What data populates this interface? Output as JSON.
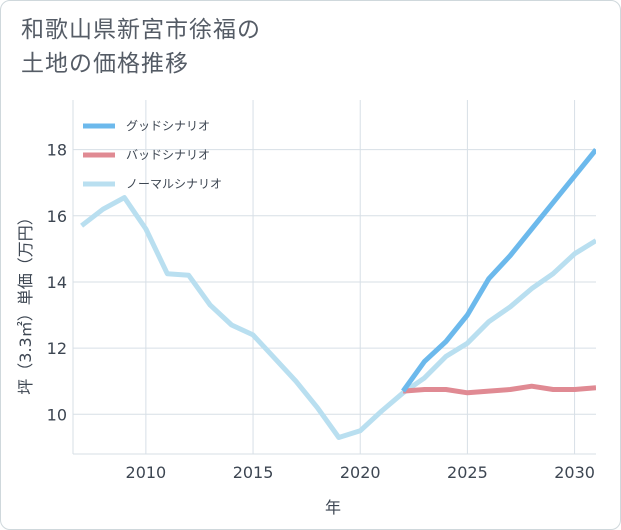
{
  "header": {
    "title_line1": "和歌山県新宮市徐福の",
    "title_line2": "土地の価格推移"
  },
  "chart_data": {
    "type": "line",
    "title": "和歌山県新宮市徐福の土地の価格推移",
    "xlabel": "年",
    "ylabel": "坪（3.3㎡）単価（万円）",
    "xlim": [
      2006.6,
      2031
    ],
    "ylim": [
      8.8,
      19.5
    ],
    "x_ticks": [
      2010,
      2015,
      2020,
      2025,
      2030
    ],
    "y_ticks": [
      10,
      12,
      14,
      16,
      18
    ],
    "grid": true,
    "legend_position": "top-left",
    "series": [
      {
        "name": "グッドシナリオ",
        "color": "#6cb9ec",
        "x": [
          2022,
          2023,
          2024,
          2025,
          2026,
          2027,
          2028,
          2029,
          2030,
          2031
        ],
        "values": [
          10.7,
          11.6,
          12.2,
          13.0,
          14.1,
          14.8,
          15.6,
          16.4,
          17.2,
          18.0
        ]
      },
      {
        "name": "バッドシナリオ",
        "color": "#e08a93",
        "x": [
          2022,
          2023,
          2024,
          2025,
          2026,
          2027,
          2028,
          2029,
          2030,
          2031
        ],
        "values": [
          10.7,
          10.75,
          10.75,
          10.65,
          10.7,
          10.75,
          10.85,
          10.75,
          10.75,
          10.8
        ]
      },
      {
        "name": "ノーマルシナリオ",
        "color": "#b9dff0",
        "x": [
          2007,
          2008,
          2009,
          2010,
          2011,
          2012,
          2013,
          2014,
          2015,
          2016,
          2017,
          2018,
          2019,
          2020,
          2021,
          2022,
          2023,
          2024,
          2025,
          2026,
          2027,
          2028,
          2029,
          2030,
          2031
        ],
        "values": [
          15.7,
          16.2,
          16.55,
          15.6,
          14.25,
          14.2,
          13.3,
          12.7,
          12.4,
          11.7,
          11.0,
          10.2,
          9.3,
          9.5,
          10.1,
          10.65,
          11.1,
          11.75,
          12.15,
          12.8,
          13.25,
          13.8,
          14.25,
          14.85,
          15.25
        ]
      }
    ]
  }
}
